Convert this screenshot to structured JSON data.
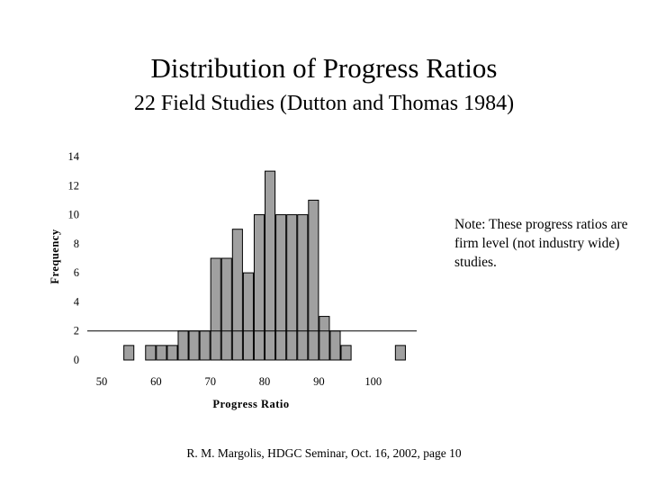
{
  "chart_data": {
    "type": "bar",
    "title": "Distribution of Progress Ratios",
    "subtitle": "22 Field Studies (Dutton and Thomas 1984)",
    "xlabel": "Progress Ratio",
    "ylabel": "Frequency",
    "xlim": [
      50,
      108
    ],
    "ylim": [
      0,
      14
    ],
    "x_ticks": [
      50,
      60,
      70,
      80,
      90,
      100
    ],
    "y_ticks": [
      0,
      2,
      4,
      6,
      8,
      10,
      12,
      14
    ],
    "bin_width": 2,
    "bars": [
      {
        "x": 55,
        "value": 1
      },
      {
        "x": 59,
        "value": 1
      },
      {
        "x": 61,
        "value": 1
      },
      {
        "x": 63,
        "value": 1
      },
      {
        "x": 65,
        "value": 2
      },
      {
        "x": 67,
        "value": 2
      },
      {
        "x": 69,
        "value": 2
      },
      {
        "x": 71,
        "value": 7
      },
      {
        "x": 73,
        "value": 7
      },
      {
        "x": 75,
        "value": 9
      },
      {
        "x": 77,
        "value": 6
      },
      {
        "x": 79,
        "value": 10
      },
      {
        "x": 81,
        "value": 13
      },
      {
        "x": 83,
        "value": 10
      },
      {
        "x": 85,
        "value": 10
      },
      {
        "x": 87,
        "value": 10
      },
      {
        "x": 89,
        "value": 11
      },
      {
        "x": 91,
        "value": 3
      },
      {
        "x": 93,
        "value": 2
      },
      {
        "x": 95,
        "value": 1
      },
      {
        "x": 105,
        "value": 1
      }
    ],
    "reference_line_y": 2,
    "bar_color": "#a0a0a0"
  },
  "note": "Note: These progress ratios are firm level (not industry wide) studies.",
  "footer": "R. M. Margolis, HDGC Seminar, Oct. 16, 2002, page 10"
}
